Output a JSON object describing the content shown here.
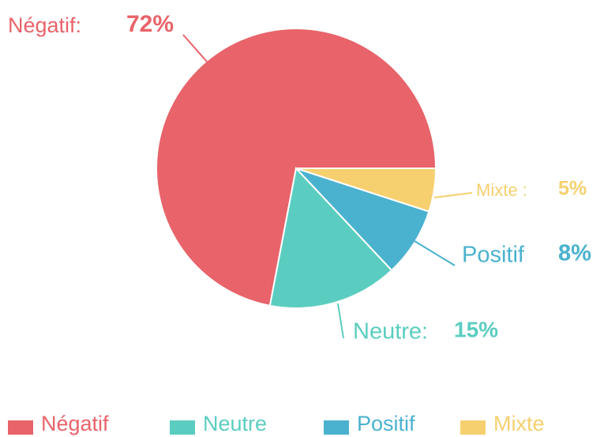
{
  "chart_data": {
    "type": "pie",
    "categories": [
      "Négatif",
      "Neutre",
      "Positif",
      "Mixte"
    ],
    "slice_labels": [
      "Négatif:",
      "Neutre:",
      "Positif",
      "Mixte :"
    ],
    "values": [
      72,
      15,
      8,
      5
    ],
    "value_labels": [
      "72%",
      "15%",
      "8%",
      "5%"
    ],
    "colors": [
      "#e8636a",
      "#5bcdc0",
      "#4ab2cf",
      "#f6d06f"
    ],
    "start_angle": 0,
    "direction": "counterclockwise",
    "legend": "bottom"
  }
}
